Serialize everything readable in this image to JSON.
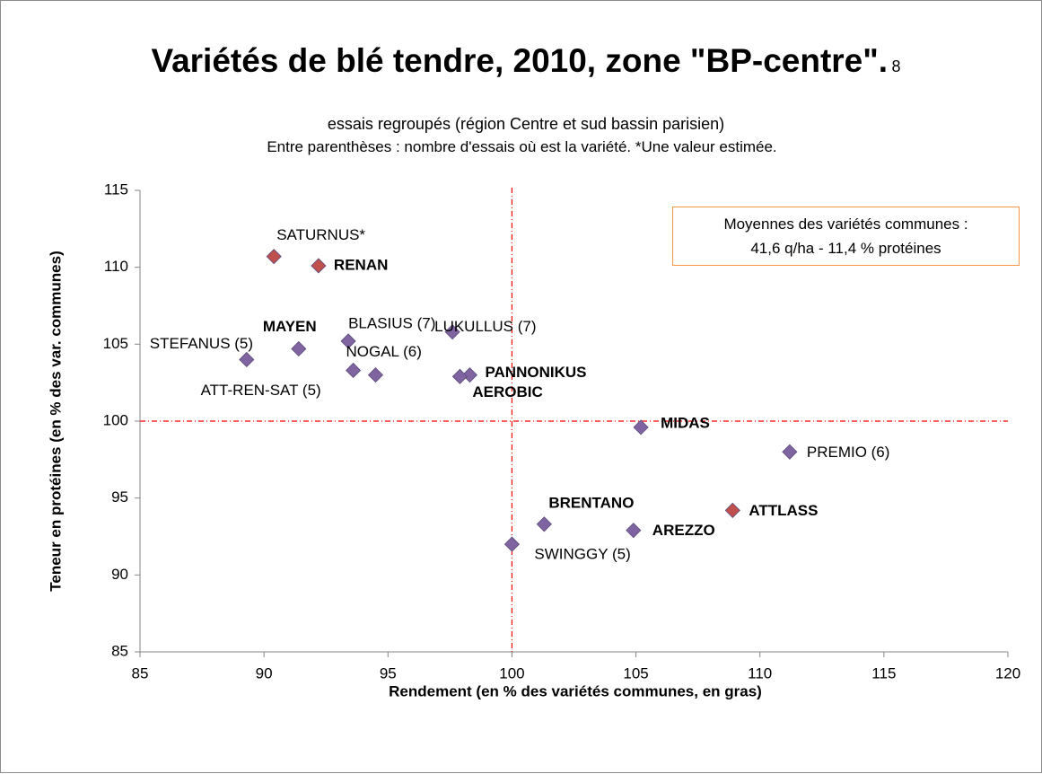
{
  "chart_data": {
    "type": "scatter",
    "title": "Variétés de blé tendre, 2010, zone \"BP-centre\".",
    "subtitle": "8 essais regroupés (région Centre et sud bassin parisien)",
    "note": "Entre parenthèses : nombre d'essais où est la variété. *Une valeur estimée.",
    "annotation": [
      "Moyennes des variétés communes :",
      "41,6 q/ha  -  11,4 % protéines"
    ],
    "xlabel": "Rendement (en % des variétés communes, en gras)",
    "ylabel": "Teneur en protéines (en % des var. communes)",
    "labels": [
      "SATURNUS*",
      "RENAN",
      "MAYEN",
      "STEFANUS (5)",
      "BLASIUS (7)",
      "ATT-REN-SAT (5)",
      "NOGAL (6)",
      "LUKULLUS (7)",
      "PANNONIKUS",
      "AEROBIC",
      "MIDAS",
      "PREMIO (6)",
      "BRENTANO",
      "AREZZO",
      "ATTLASS",
      "SWINGGY (5)"
    ],
    "x": [
      90.4,
      92.2,
      91.4,
      89.3,
      93.4,
      93.6,
      94.5,
      97.6,
      98.3,
      97.9,
      105.2,
      111.2,
      101.3,
      104.9,
      108.9,
      100.0
    ],
    "y": [
      110.7,
      110.1,
      104.7,
      104.0,
      105.2,
      103.3,
      103.0,
      105.8,
      103.0,
      102.9,
      99.6,
      98.0,
      93.3,
      92.9,
      94.2,
      92.0
    ],
    "colors": [
      "#c0504d",
      "#c0504d",
      "#8064a2",
      "#8064a2",
      "#8064a2",
      "#8064a2",
      "#8064a2",
      "#8064a2",
      "#8064a2",
      "#8064a2",
      "#8064a2",
      "#8064a2",
      "#8064a2",
      "#8064a2",
      "#c0504d",
      "#8064a2"
    ],
    "label_colors": [
      "#ff0000",
      "#ff0000",
      "#000000",
      "#000000",
      "#000000",
      "#000000",
      "#000000",
      "#000000",
      "#000000",
      "#000000",
      "#000000",
      "#000000",
      "#000000",
      "#000000",
      "#ff0000",
      "#000000"
    ],
    "bold": [
      false,
      true,
      true,
      false,
      false,
      false,
      false,
      false,
      true,
      true,
      true,
      false,
      true,
      true,
      true,
      false
    ],
    "reference_x": 100,
    "reference_y": 100,
    "reference_color": "#ff0000",
    "xlim": [
      85,
      120
    ],
    "xticks": [
      85,
      90,
      95,
      100,
      105,
      110,
      115,
      120
    ],
    "ylim": [
      85,
      115
    ],
    "yticks": [
      85,
      90,
      95,
      100,
      105,
      110,
      115
    ]
  }
}
